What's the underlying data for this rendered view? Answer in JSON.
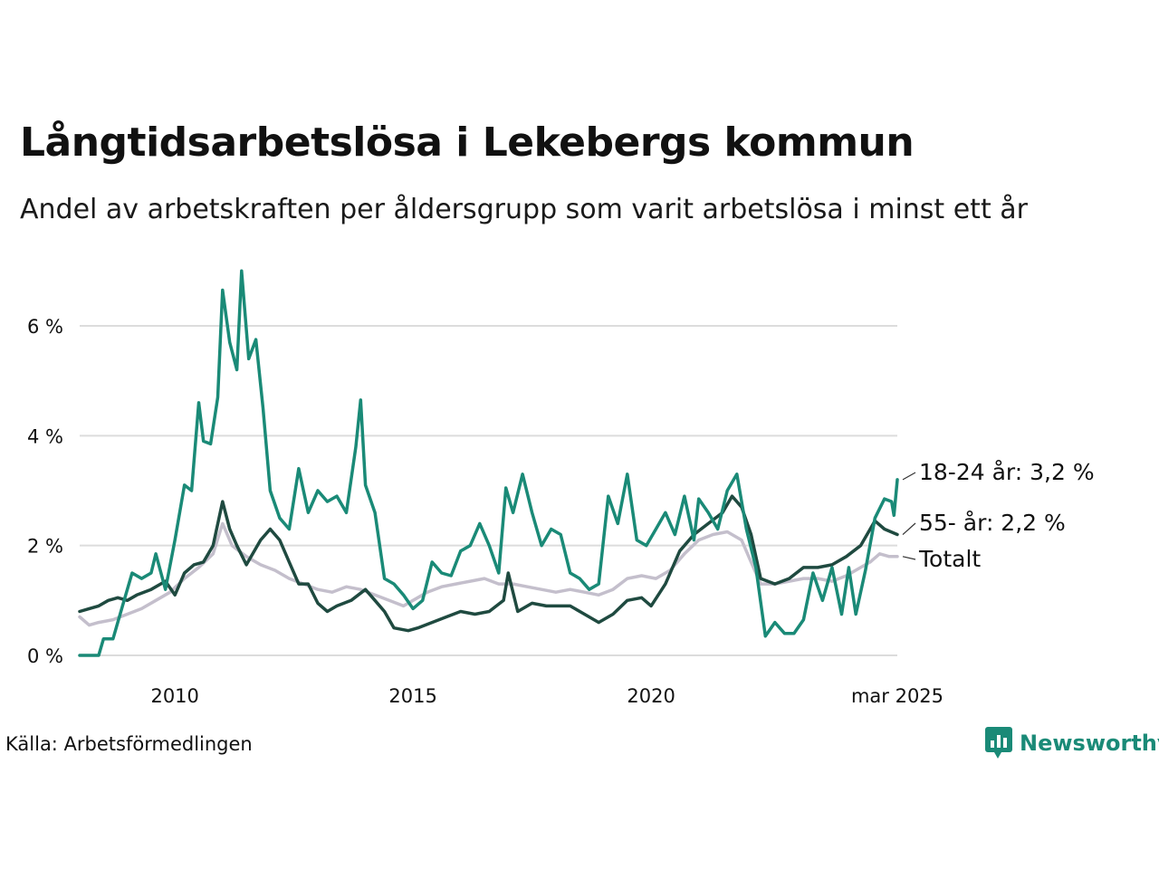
{
  "title": "Långtidsarbetslösa i Lekebergs kommun",
  "subtitle": "Andel av arbetskraften per åldersgrupp som varit arbetslösa i minst ett år",
  "source": "Källa: Arbetsförmedlingen",
  "logo": {
    "text": "Newsworthy",
    "icon": "bar-chart-icon",
    "color": "#1a8a77"
  },
  "chart_data": {
    "type": "line",
    "title": "Långtidsarbetslösa i Lekebergs kommun",
    "subtitle": "Andel av arbetskraften per åldersgrupp som varit arbetslösa i minst ett år",
    "x_range": [
      2008.0,
      2025.17
    ],
    "ylim": [
      0,
      7
    ],
    "y_ticks": [
      {
        "value": 0,
        "label": "0 %"
      },
      {
        "value": 2,
        "label": "2 %"
      },
      {
        "value": 4,
        "label": "4 %"
      },
      {
        "value": 6,
        "label": "6 %"
      }
    ],
    "x_ticks": [
      {
        "value": 2010,
        "label": "2010"
      },
      {
        "value": 2015,
        "label": "2015"
      },
      {
        "value": 2020,
        "label": "2020"
      },
      {
        "value": 2025.17,
        "label": "mar 2025"
      }
    ],
    "grid": true,
    "series": [
      {
        "name": "Totalt",
        "end_label": "Totalt",
        "color": "#c4bfcc",
        "points": [
          [
            2008.0,
            0.7
          ],
          [
            2008.2,
            0.55
          ],
          [
            2008.4,
            0.6
          ],
          [
            2008.7,
            0.65
          ],
          [
            2009.0,
            0.75
          ],
          [
            2009.3,
            0.85
          ],
          [
            2009.6,
            1.0
          ],
          [
            2009.9,
            1.15
          ],
          [
            2010.2,
            1.4
          ],
          [
            2010.5,
            1.6
          ],
          [
            2010.8,
            1.85
          ],
          [
            2011.0,
            2.4
          ],
          [
            2011.2,
            2.0
          ],
          [
            2011.5,
            1.8
          ],
          [
            2011.8,
            1.65
          ],
          [
            2012.1,
            1.55
          ],
          [
            2012.4,
            1.4
          ],
          [
            2012.7,
            1.3
          ],
          [
            2013.0,
            1.2
          ],
          [
            2013.3,
            1.15
          ],
          [
            2013.6,
            1.25
          ],
          [
            2013.9,
            1.2
          ],
          [
            2014.2,
            1.1
          ],
          [
            2014.5,
            1.0
          ],
          [
            2014.8,
            0.9
          ],
          [
            2015.0,
            1.0
          ],
          [
            2015.3,
            1.15
          ],
          [
            2015.6,
            1.25
          ],
          [
            2015.9,
            1.3
          ],
          [
            2016.2,
            1.35
          ],
          [
            2016.5,
            1.4
          ],
          [
            2016.8,
            1.3
          ],
          [
            2017.1,
            1.3
          ],
          [
            2017.4,
            1.25
          ],
          [
            2017.7,
            1.2
          ],
          [
            2018.0,
            1.15
          ],
          [
            2018.3,
            1.2
          ],
          [
            2018.6,
            1.15
          ],
          [
            2018.9,
            1.1
          ],
          [
            2019.2,
            1.2
          ],
          [
            2019.5,
            1.4
          ],
          [
            2019.8,
            1.45
          ],
          [
            2020.1,
            1.4
          ],
          [
            2020.4,
            1.55
          ],
          [
            2020.7,
            1.85
          ],
          [
            2021.0,
            2.1
          ],
          [
            2021.3,
            2.2
          ],
          [
            2021.6,
            2.25
          ],
          [
            2021.9,
            2.1
          ],
          [
            2022.1,
            1.7
          ],
          [
            2022.3,
            1.3
          ],
          [
            2022.6,
            1.3
          ],
          [
            2022.9,
            1.35
          ],
          [
            2023.2,
            1.4
          ],
          [
            2023.5,
            1.4
          ],
          [
            2023.8,
            1.35
          ],
          [
            2024.1,
            1.45
          ],
          [
            2024.4,
            1.6
          ],
          [
            2024.6,
            1.7
          ],
          [
            2024.8,
            1.85
          ],
          [
            2025.0,
            1.8
          ],
          [
            2025.17,
            1.8
          ]
        ]
      },
      {
        "name": "55- år",
        "end_label": "55- år: 2,2 %",
        "color": "#1f4a40",
        "points": [
          [
            2008.0,
            0.8
          ],
          [
            2008.2,
            0.85
          ],
          [
            2008.4,
            0.9
          ],
          [
            2008.6,
            1.0
          ],
          [
            2008.8,
            1.05
          ],
          [
            2009.0,
            1.0
          ],
          [
            2009.2,
            1.1
          ],
          [
            2009.5,
            1.2
          ],
          [
            2009.8,
            1.35
          ],
          [
            2010.0,
            1.1
          ],
          [
            2010.2,
            1.5
          ],
          [
            2010.4,
            1.65
          ],
          [
            2010.6,
            1.7
          ],
          [
            2010.8,
            2.0
          ],
          [
            2011.0,
            2.8
          ],
          [
            2011.15,
            2.3
          ],
          [
            2011.3,
            2.0
          ],
          [
            2011.5,
            1.65
          ],
          [
            2011.8,
            2.1
          ],
          [
            2012.0,
            2.3
          ],
          [
            2012.2,
            2.1
          ],
          [
            2012.4,
            1.7
          ],
          [
            2012.6,
            1.3
          ],
          [
            2012.8,
            1.3
          ],
          [
            2013.0,
            0.95
          ],
          [
            2013.2,
            0.8
          ],
          [
            2013.4,
            0.9
          ],
          [
            2013.7,
            1.0
          ],
          [
            2014.0,
            1.2
          ],
          [
            2014.2,
            1.0
          ],
          [
            2014.4,
            0.8
          ],
          [
            2014.6,
            0.5
          ],
          [
            2014.9,
            0.45
          ],
          [
            2015.1,
            0.5
          ],
          [
            2015.4,
            0.6
          ],
          [
            2015.7,
            0.7
          ],
          [
            2016.0,
            0.8
          ],
          [
            2016.3,
            0.75
          ],
          [
            2016.6,
            0.8
          ],
          [
            2016.9,
            1.0
          ],
          [
            2017.0,
            1.5
          ],
          [
            2017.2,
            0.8
          ],
          [
            2017.5,
            0.95
          ],
          [
            2017.8,
            0.9
          ],
          [
            2018.0,
            0.9
          ],
          [
            2018.3,
            0.9
          ],
          [
            2018.6,
            0.75
          ],
          [
            2018.9,
            0.6
          ],
          [
            2019.2,
            0.75
          ],
          [
            2019.5,
            1.0
          ],
          [
            2019.8,
            1.05
          ],
          [
            2020.0,
            0.9
          ],
          [
            2020.3,
            1.3
          ],
          [
            2020.6,
            1.9
          ],
          [
            2020.9,
            2.2
          ],
          [
            2021.2,
            2.4
          ],
          [
            2021.5,
            2.6
          ],
          [
            2021.7,
            2.9
          ],
          [
            2021.9,
            2.7
          ],
          [
            2022.1,
            2.2
          ],
          [
            2022.3,
            1.4
          ],
          [
            2022.6,
            1.3
          ],
          [
            2022.9,
            1.4
          ],
          [
            2023.2,
            1.6
          ],
          [
            2023.5,
            1.6
          ],
          [
            2023.8,
            1.65
          ],
          [
            2024.1,
            1.8
          ],
          [
            2024.4,
            2.0
          ],
          [
            2024.7,
            2.45
          ],
          [
            2024.9,
            2.3
          ],
          [
            2025.17,
            2.2
          ]
        ]
      },
      {
        "name": "18-24 år",
        "end_label": "18-24 år: 3,2 %",
        "color": "#1a8a77",
        "points": [
          [
            2008.0,
            0.0
          ],
          [
            2008.4,
            0.0
          ],
          [
            2008.5,
            0.3
          ],
          [
            2008.7,
            0.3
          ],
          [
            2008.9,
            0.9
          ],
          [
            2009.1,
            1.5
          ],
          [
            2009.3,
            1.4
          ],
          [
            2009.5,
            1.5
          ],
          [
            2009.6,
            1.85
          ],
          [
            2009.8,
            1.2
          ],
          [
            2010.0,
            2.1
          ],
          [
            2010.2,
            3.1
          ],
          [
            2010.35,
            3.0
          ],
          [
            2010.5,
            4.6
          ],
          [
            2010.6,
            3.9
          ],
          [
            2010.75,
            3.85
          ],
          [
            2010.9,
            4.7
          ],
          [
            2011.0,
            6.65
          ],
          [
            2011.15,
            5.7
          ],
          [
            2011.3,
            5.2
          ],
          [
            2011.4,
            7.0
          ],
          [
            2011.55,
            5.4
          ],
          [
            2011.7,
            5.75
          ],
          [
            2011.85,
            4.5
          ],
          [
            2012.0,
            3.0
          ],
          [
            2012.2,
            2.5
          ],
          [
            2012.4,
            2.3
          ],
          [
            2012.6,
            3.4
          ],
          [
            2012.8,
            2.6
          ],
          [
            2013.0,
            3.0
          ],
          [
            2013.2,
            2.8
          ],
          [
            2013.4,
            2.9
          ],
          [
            2013.6,
            2.6
          ],
          [
            2013.8,
            3.8
          ],
          [
            2013.9,
            4.65
          ],
          [
            2014.0,
            3.1
          ],
          [
            2014.2,
            2.6
          ],
          [
            2014.4,
            1.4
          ],
          [
            2014.6,
            1.3
          ],
          [
            2014.8,
            1.1
          ],
          [
            2015.0,
            0.85
          ],
          [
            2015.2,
            1.0
          ],
          [
            2015.4,
            1.7
          ],
          [
            2015.6,
            1.5
          ],
          [
            2015.8,
            1.45
          ],
          [
            2016.0,
            1.9
          ],
          [
            2016.2,
            2.0
          ],
          [
            2016.4,
            2.4
          ],
          [
            2016.6,
            2.0
          ],
          [
            2016.8,
            1.5
          ],
          [
            2016.95,
            3.05
          ],
          [
            2017.1,
            2.6
          ],
          [
            2017.3,
            3.3
          ],
          [
            2017.5,
            2.6
          ],
          [
            2017.7,
            2.0
          ],
          [
            2017.9,
            2.3
          ],
          [
            2018.1,
            2.2
          ],
          [
            2018.3,
            1.5
          ],
          [
            2018.5,
            1.4
          ],
          [
            2018.7,
            1.2
          ],
          [
            2018.9,
            1.3
          ],
          [
            2019.1,
            2.9
          ],
          [
            2019.3,
            2.4
          ],
          [
            2019.5,
            3.3
          ],
          [
            2019.7,
            2.1
          ],
          [
            2019.9,
            2.0
          ],
          [
            2020.1,
            2.3
          ],
          [
            2020.3,
            2.6
          ],
          [
            2020.5,
            2.2
          ],
          [
            2020.7,
            2.9
          ],
          [
            2020.9,
            2.1
          ],
          [
            2021.0,
            2.85
          ],
          [
            2021.2,
            2.6
          ],
          [
            2021.4,
            2.3
          ],
          [
            2021.6,
            3.0
          ],
          [
            2021.8,
            3.3
          ],
          [
            2022.0,
            2.3
          ],
          [
            2022.2,
            1.6
          ],
          [
            2022.4,
            0.35
          ],
          [
            2022.6,
            0.6
          ],
          [
            2022.8,
            0.4
          ],
          [
            2023.0,
            0.4
          ],
          [
            2023.2,
            0.65
          ],
          [
            2023.4,
            1.5
          ],
          [
            2023.6,
            1.0
          ],
          [
            2023.8,
            1.6
          ],
          [
            2024.0,
            0.75
          ],
          [
            2024.15,
            1.6
          ],
          [
            2024.3,
            0.75
          ],
          [
            2024.5,
            1.55
          ],
          [
            2024.7,
            2.5
          ],
          [
            2024.9,
            2.85
          ],
          [
            2025.05,
            2.8
          ],
          [
            2025.1,
            2.55
          ],
          [
            2025.17,
            3.2
          ]
        ]
      }
    ]
  }
}
